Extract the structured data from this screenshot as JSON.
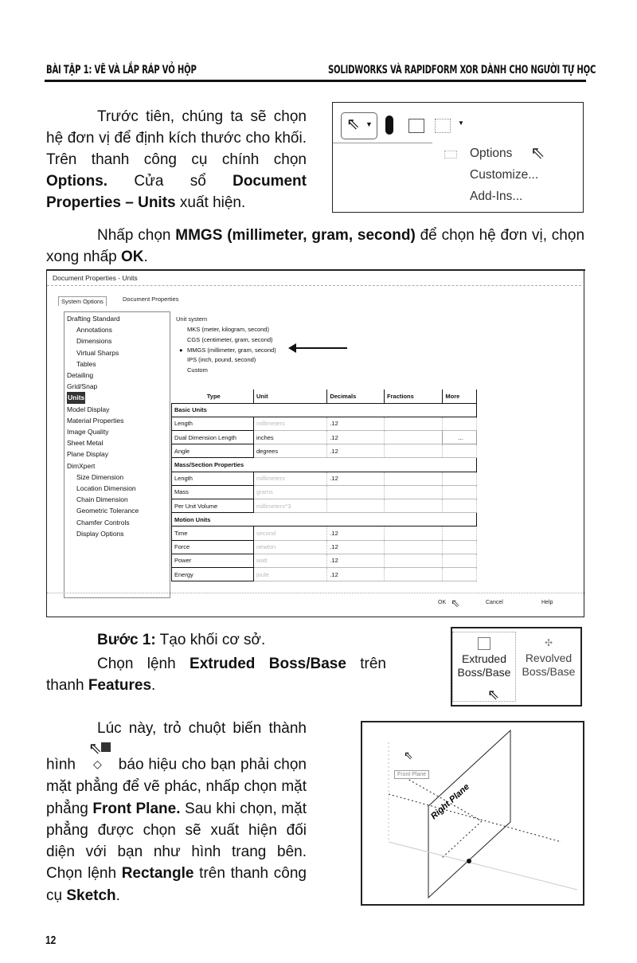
{
  "header": {
    "left": "BÀI TẬP 1: VẼ VÀ LẮP RÁP VỎ HỘP",
    "right": "SOLIDWORKS VÀ RAPIDFORM XOR DÀNH CHO NGƯỜI TỰ HỌC"
  },
  "para1": {
    "t1": "Trước tiên, chúng ta sẽ chọn hệ đơn vị để định kích thước cho khối. Trên thanh công cụ chính chọn",
    "b1": "Options.",
    "t2": " Cửa sổ ",
    "b2": "Document Properties – Units",
    "t3": " xuất hiện."
  },
  "options_menu": {
    "items": [
      "Options",
      "Customize...",
      "Add-Ins..."
    ]
  },
  "para2": {
    "t1": "Nhấp chọn ",
    "b1": "MMGS (millimeter, gram, second)",
    "t2": " để chọn hệ đơn vị, chọn xong nhấp ",
    "b2": "OK",
    "t3": "."
  },
  "dialog": {
    "title": "Document Properties - Units",
    "tabs": [
      "System Options",
      "Document Properties"
    ],
    "tree": [
      "Drafting Standard",
      "Annotations",
      "Dimensions",
      "Virtual Sharps",
      "Tables",
      "Detailing",
      "Grid/Snap",
      "Units",
      "Model Display",
      "Material Properties",
      "Image Quality",
      "Sheet Metal",
      "Plane Display",
      "DimXpert",
      "Size Dimension",
      "Location Dimension",
      "Chain Dimension",
      "Geometric Tolerance",
      "Chamfer Controls",
      "Display Options"
    ],
    "tree_selected": "Units",
    "unit_system_label": "Unit system",
    "unit_systems": [
      "MKS  (meter, kilogram, second)",
      "CGS  (centimeter, gram, second)",
      "MMGS (millimeter, gram, second)",
      "IPS  (inch, pound, second)",
      "Custom"
    ],
    "unit_system_selected": "MMGS (millimeter, gram, second)",
    "columns": [
      "Type",
      "Unit",
      "Decimals",
      "Fractions",
      "More"
    ],
    "rows": [
      {
        "group": "Basic Units"
      },
      {
        "type": "Length",
        "unit": "millimeters",
        "decimals": ".12",
        "faded": true,
        "more": ""
      },
      {
        "type": "Dual Dimension Length",
        "unit": "inches",
        "decimals": ".12",
        "more": "..."
      },
      {
        "type": "Angle",
        "unit": "degrees",
        "decimals": ".12"
      },
      {
        "group": "Mass/Section Properties"
      },
      {
        "type": "Length",
        "unit": "millimeters",
        "decimals": ".12",
        "faded": true
      },
      {
        "type": "Mass",
        "unit": "grams",
        "decimals": "",
        "faded": true
      },
      {
        "type": "Per Unit Volume",
        "unit": "millimeters^3",
        "decimals": "",
        "faded": true
      },
      {
        "group": "Motion Units"
      },
      {
        "type": "Time",
        "unit": "second",
        "decimals": ".12",
        "faded": true
      },
      {
        "type": "Force",
        "unit": "newton",
        "decimals": ".12",
        "faded": true
      },
      {
        "type": "Power",
        "unit": "watt",
        "decimals": ".12",
        "faded": true
      },
      {
        "type": "Energy",
        "unit": "joule",
        "decimals": ".12",
        "faded": true
      }
    ],
    "buttons": {
      "ok": "OK",
      "cancel": "Cancel",
      "help": "Help"
    }
  },
  "step1": {
    "label": "Bước 1:",
    "text": " Tạo khối cơ sở."
  },
  "para3": {
    "t1": "Chọn lệnh ",
    "b1": "Extruded Boss/Base",
    "t2": " trên thanh ",
    "b2": "Features",
    "t3": "."
  },
  "features": {
    "extruded": [
      "Extruded",
      "Boss/Base"
    ],
    "revolved": [
      "Revolved",
      "Boss/Base"
    ]
  },
  "para4": {
    "t1": "Lúc này, trỏ chuột biến thành hình",
    "t2": " báo hiệu cho bạn phải chọn mặt phẳng để vẽ phác, nhấp chọn mặt phẳng ",
    "b1": "Front Plane.",
    "t3": " Sau khi chọn, mặt phẳng được chọn sẽ xuất hiện đối diện với bạn như hình trang bên. Chọn lệnh ",
    "b2": "Rectangle",
    "t4": " trên thanh công cụ ",
    "b3": "Sketch",
    "t5": "."
  },
  "viewport": {
    "plane_label": "Right Plane",
    "tooltip": "Front Plane"
  },
  "page_number": "12"
}
